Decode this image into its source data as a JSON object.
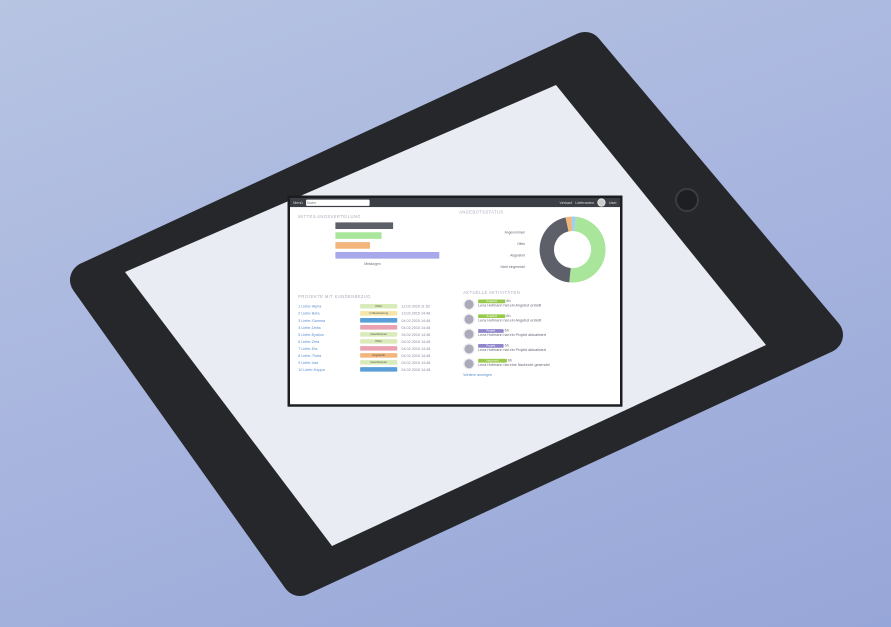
{
  "colors": {
    "bezel": "#25272b",
    "topbar": "#3b3e45",
    "green": "#a9e59a",
    "gray": "#5d6068",
    "orange": "#f2b57a",
    "purple": "#a9a8ea",
    "blue": "#9fd1ef",
    "lime": "#99c94a",
    "violet": "#8f86cc"
  },
  "topbar": {
    "menu": "Menü",
    "search_placeholder": "Suche",
    "nav1": "Verkauf",
    "nav2": "Lieferanten",
    "user": "User"
  },
  "bar_chart": {
    "title": "Mitteilungsverteilung",
    "values": [
      5,
      4,
      3,
      9
    ],
    "xlabel": "Meldungen"
  },
  "donut": {
    "title": "Angebotsstatus",
    "legend": [
      "Angenommen",
      "Offen",
      "Abgelehnt",
      "Nicht eingereicht"
    ],
    "values": [
      50,
      45,
      3,
      2
    ]
  },
  "projects": {
    "title": "Projekte mit Kundenbezug",
    "rows": [
      {
        "link": "1 Liefer-Alpha",
        "tag": "Offen",
        "tag_color": "#d9ebb8",
        "date": "12.02.2015 11:52"
      },
      {
        "link": "2 Liefer-Beta",
        "tag": "In Bearbeitung",
        "tag_color": "#f6e7a8",
        "date": "13.02.2015 14:48"
      },
      {
        "link": "3 Liefer-Gamma",
        "tag": "",
        "tag_color": "#5a9fd8",
        "date": "04.02.2015 14:48"
      },
      {
        "link": "4 Liefer-Delta",
        "tag": "",
        "tag_color": "#eaa2b2",
        "date": "04.02.2015 14:48"
      },
      {
        "link": "5 Liefer-Epsilon",
        "tag": "Geschlossen",
        "tag_color": "#d9ebb8",
        "date": "04.02.2015 14:48"
      },
      {
        "link": "6 Liefer-Zeta",
        "tag": "Offen",
        "tag_color": "#d9ebb8",
        "date": "04.02.2015 14:48"
      },
      {
        "link": "7 Liefer-Eta",
        "tag": "",
        "tag_color": "#eaa2b2",
        "date": "04.02.2015 14:48"
      },
      {
        "link": "8 Liefer-Theta",
        "tag": "Zugestellt",
        "tag_color": "#f2b57a",
        "date": "04.02.2015 14:48"
      },
      {
        "link": "9 Liefer-Iota",
        "tag": "Geschlossen",
        "tag_color": "#d9ebb8",
        "date": "04.02.2015 14:48"
      },
      {
        "link": "10 Liefer-Kappa",
        "tag": "",
        "tag_color": "#5a9fd8",
        "date": "04.02.2015 14:48"
      }
    ]
  },
  "activities": {
    "title": "Aktuelle Aktivitäten",
    "items": [
      {
        "badge": "Angebot",
        "color": "#99c94a",
        "time": "6h",
        "text": "Lena Hofmann hat ein Angebot erstellt"
      },
      {
        "badge": "Angebot",
        "color": "#99c94a",
        "time": "6h",
        "text": "Lena Hofmann hat ein Angebot erstellt"
      },
      {
        "badge": "Projekt",
        "color": "#8f86cc",
        "time": "6h",
        "text": "Lena Hofmann hat ein Projekt aktualisiert"
      },
      {
        "badge": "Projekt",
        "color": "#8f86cc",
        "time": "6h",
        "text": "Lena Hofmann hat ein Projekt aktualisiert"
      },
      {
        "badge": "Nachricht",
        "color": "#99c94a",
        "time": "6h",
        "text": "Lena Hofmann hat eine Nachricht gesendet"
      }
    ],
    "more": "Weitere anzeigen"
  }
}
